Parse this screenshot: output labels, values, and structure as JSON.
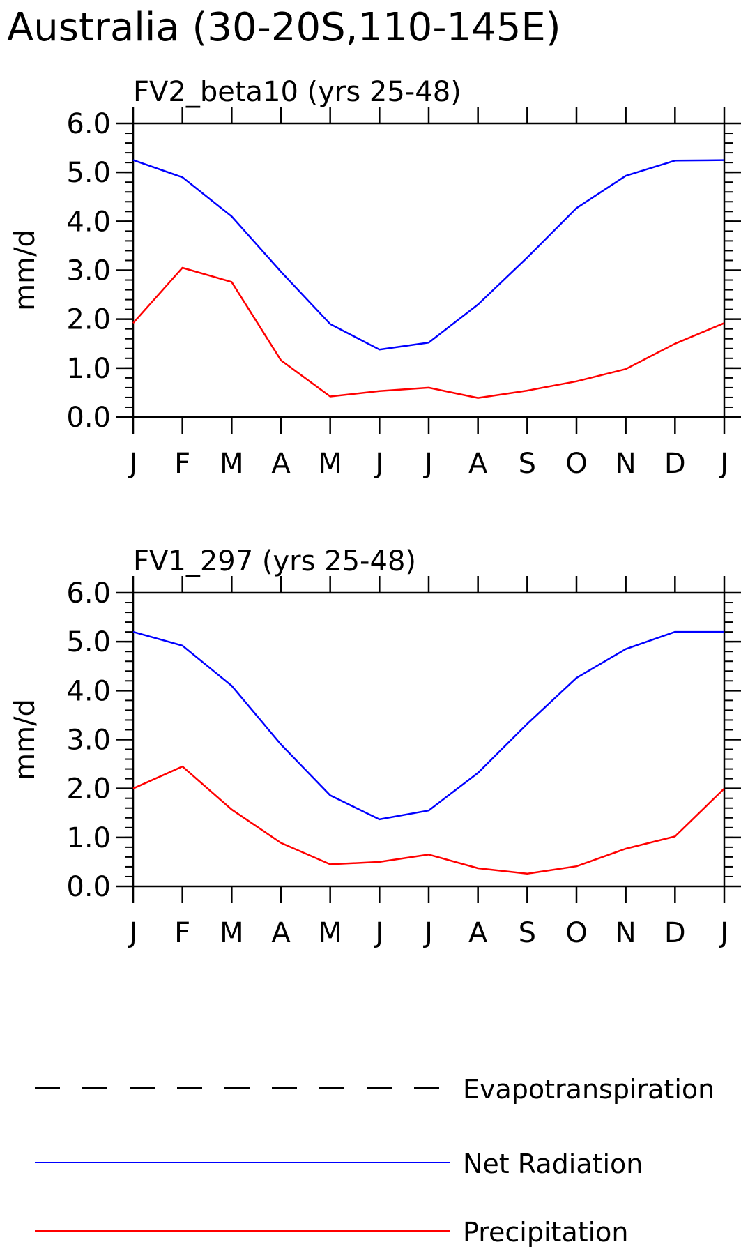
{
  "figure": {
    "title": "Australia (30-20S,110-145E)"
  },
  "legend": {
    "placement": "bottom",
    "items": [
      {
        "label": "Evapotranspiration",
        "color": "#000000",
        "style": "dashed"
      },
      {
        "label": "Net Radiation",
        "color": "#0000ff",
        "style": "solid"
      },
      {
        "label": "Precipitation",
        "color": "#ff0000",
        "style": "solid"
      }
    ]
  },
  "chart_data": [
    {
      "type": "line",
      "title": "FV2_beta10 (yrs 25-48)",
      "xlabel": "",
      "ylabel": "mm/d",
      "ylim": [
        0,
        6
      ],
      "y_ticks": [
        "0.0",
        "1.0",
        "2.0",
        "3.0",
        "4.0",
        "5.0",
        "6.0"
      ],
      "categories": [
        "J",
        "F",
        "M",
        "A",
        "M",
        "J",
        "J",
        "A",
        "S",
        "O",
        "N",
        "D",
        "J"
      ],
      "grid": false,
      "series": [
        {
          "name": "Net Radiation",
          "color": "#0000ff",
          "values": [
            5.25,
            4.9,
            4.1,
            2.97,
            1.9,
            1.38,
            1.52,
            2.3,
            3.26,
            4.27,
            4.93,
            5.24,
            5.25
          ]
        },
        {
          "name": "Precipitation",
          "color": "#ff0000",
          "values": [
            1.92,
            3.05,
            2.76,
            1.16,
            0.42,
            0.53,
            0.6,
            0.39,
            0.54,
            0.73,
            0.98,
            1.5,
            1.92
          ]
        }
      ]
    },
    {
      "type": "line",
      "title": "FV1_297 (yrs 25-48)",
      "xlabel": "",
      "ylabel": "mm/d",
      "ylim": [
        0,
        6
      ],
      "y_ticks": [
        "0.0",
        "1.0",
        "2.0",
        "3.0",
        "4.0",
        "5.0",
        "6.0"
      ],
      "categories": [
        "J",
        "F",
        "M",
        "A",
        "M",
        "J",
        "J",
        "A",
        "S",
        "O",
        "N",
        "D",
        "J"
      ],
      "grid": false,
      "series": [
        {
          "name": "Net Radiation",
          "color": "#0000ff",
          "values": [
            5.2,
            4.92,
            4.1,
            2.9,
            1.86,
            1.37,
            1.55,
            2.32,
            3.32,
            4.26,
            4.85,
            5.2,
            5.2
          ]
        },
        {
          "name": "Precipitation",
          "color": "#ff0000",
          "values": [
            2.0,
            2.45,
            1.57,
            0.89,
            0.45,
            0.5,
            0.65,
            0.37,
            0.26,
            0.41,
            0.77,
            1.02,
            2.0
          ]
        }
      ]
    }
  ]
}
